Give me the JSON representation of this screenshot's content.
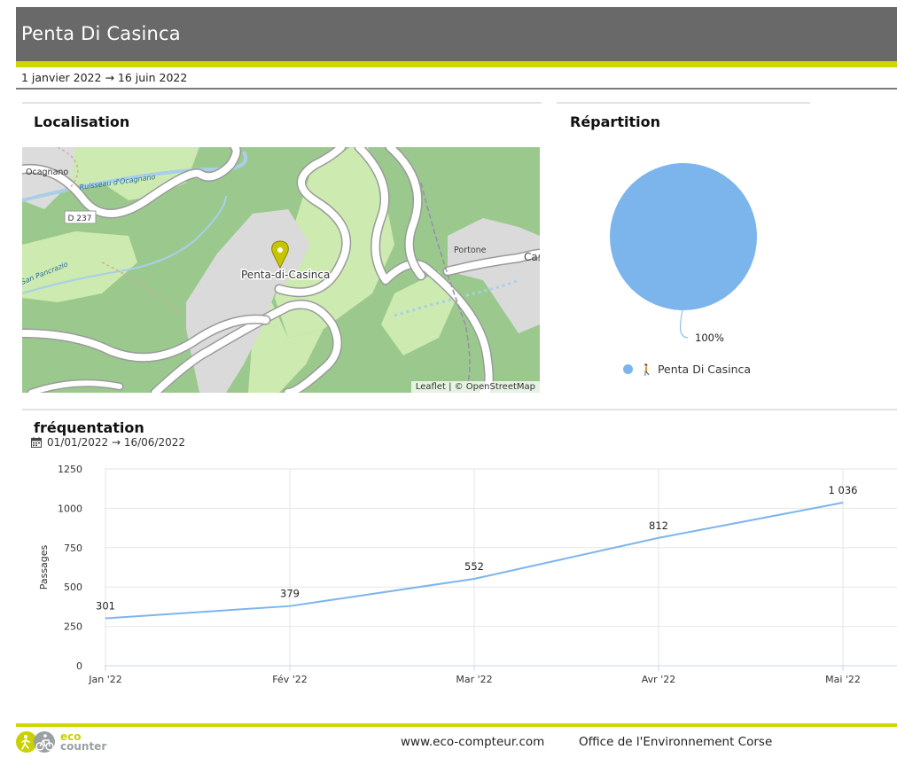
{
  "header": {
    "title": "Penta Di Casinca",
    "date_range": "1 janvier 2022 → 16 juin 2022"
  },
  "localisation": {
    "title": "Localisation",
    "map_labels": {
      "village": "Penta-di-Casinca",
      "ocagnano": "Ocagnano",
      "road": "D 237",
      "stream": "Ruisseau d'Ocagnano",
      "san_pancrazio": "San Pancrazio",
      "portone": "Portone",
      "cas": "Cas"
    },
    "attribution": {
      "leaflet": "Leaflet",
      "separator": " | © ",
      "osm": "OpenStreetMap"
    },
    "marker_color": "#c9c400"
  },
  "repartition": {
    "title": "Répartition",
    "percent_label": "100%",
    "legend_label": "Penta Di Casinca",
    "legend_icon": "pedestrian-icon",
    "color": "#7cb5ec"
  },
  "frequentation": {
    "title": "fréquentation",
    "subtitle": "01/01/2022 → 16/06/2022",
    "calendar_icon": "calendar-icon"
  },
  "chart_data": [
    {
      "type": "pie",
      "title": "Répartition",
      "labels": [
        "Penta Di Casinca"
      ],
      "values": [
        100
      ],
      "data_labels": [
        "100%"
      ],
      "colors": [
        "#7cb5ec"
      ],
      "legend": "bottom"
    },
    {
      "type": "line",
      "title": "fréquentation",
      "categories": [
        "Jan '22",
        "Fév '22",
        "Mar '22",
        "Avr '22",
        "Mai '22"
      ],
      "series": [
        {
          "name": "Penta Di Casinca",
          "values": [
            301,
            379,
            552,
            812,
            1036
          ],
          "color": "#7cb5ec"
        }
      ],
      "data_labels": [
        "301",
        "379",
        "552",
        "812",
        "1 036"
      ],
      "xlabel": "",
      "ylabel": "Passages",
      "ylim": [
        0,
        1250
      ],
      "yticks": [
        0,
        250,
        500,
        750,
        1000,
        1250
      ],
      "grid": true
    }
  ],
  "footer": {
    "logo_top": "eco",
    "logo_bottom": "counter",
    "website": "www.eco-compteur.com",
    "organisation": "Office de l'Environnement Corse"
  }
}
